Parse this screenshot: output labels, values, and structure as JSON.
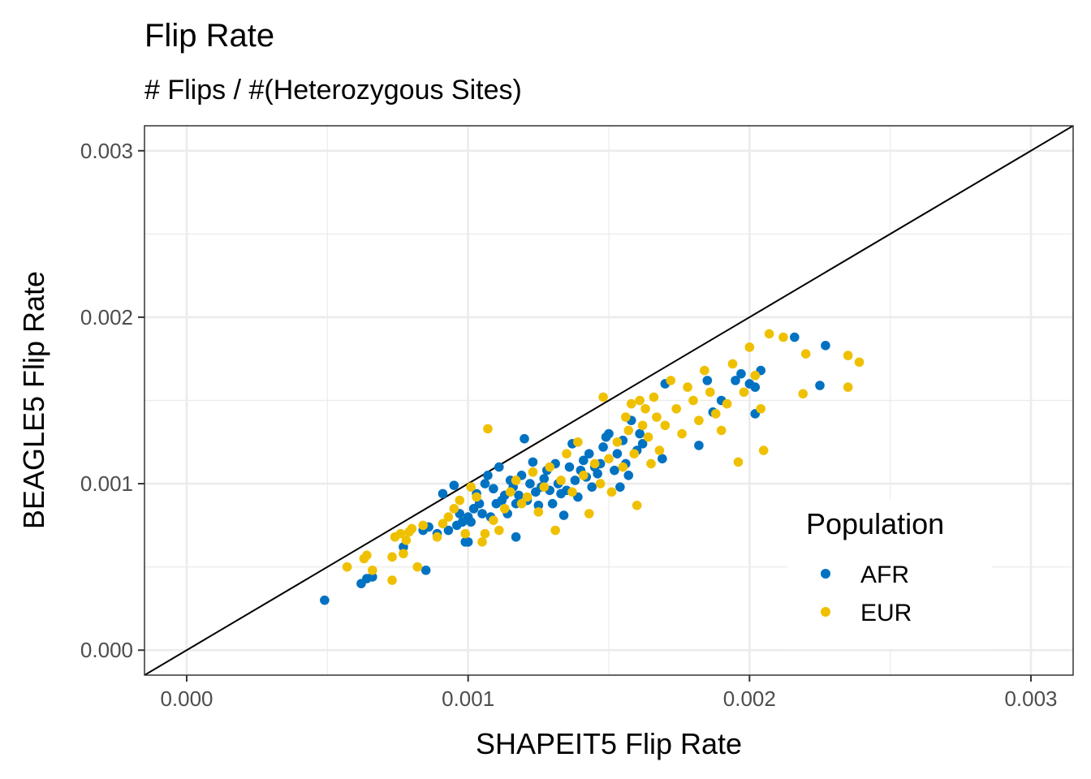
{
  "chart_data": {
    "type": "scatter",
    "title": "Flip Rate",
    "subtitle": "# Flips / #(Heterozygous Sites)",
    "xlabel": "SHAPEIT5 Flip Rate",
    "ylabel": "BEAGLE5 Flip Rate",
    "xlim": [
      -0.00015,
      0.00315
    ],
    "ylim": [
      -0.00015,
      0.00315
    ],
    "x_ticks": [
      "0.000",
      "0.001",
      "0.002",
      "0.003"
    ],
    "y_ticks": [
      "0.000",
      "0.001",
      "0.002",
      "0.003"
    ],
    "x_tick_values": [
      0,
      0.001,
      0.002,
      0.003
    ],
    "y_tick_values": [
      0,
      0.001,
      0.002,
      0.003
    ],
    "grid": true,
    "reference_line": "y = x",
    "legend_title": "Population",
    "legend_position": "bottom-right (inside plot)",
    "series": [
      {
        "name": "AFR",
        "color": "#0072C2",
        "points": [
          [
            0.00049,
            0.0003
          ],
          [
            0.00062,
            0.0004
          ],
          [
            0.00064,
            0.00043
          ],
          [
            0.00066,
            0.00044
          ],
          [
            0.00077,
            0.00062
          ],
          [
            0.00085,
            0.00048
          ],
          [
            0.00084,
            0.00072
          ],
          [
            0.00086,
            0.00074
          ],
          [
            0.00089,
            0.0007
          ],
          [
            0.00091,
            0.00094
          ],
          [
            0.00093,
            0.00072
          ],
          [
            0.00095,
            0.00099
          ],
          [
            0.00096,
            0.00075
          ],
          [
            0.00097,
            0.00082
          ],
          [
            0.00098,
            0.00077
          ],
          [
            0.00099,
            0.00065
          ],
          [
            0.001,
            0.00065
          ],
          [
            0.001,
            0.0008
          ],
          [
            0.00101,
            0.00077
          ],
          [
            0.00102,
            0.00085
          ],
          [
            0.00103,
            0.00094
          ],
          [
            0.00104,
            0.00088
          ],
          [
            0.00105,
            0.00082
          ],
          [
            0.00106,
            0.001
          ],
          [
            0.00107,
            0.00105
          ],
          [
            0.00108,
            0.0008
          ],
          [
            0.00109,
            0.00097
          ],
          [
            0.0011,
            0.00088
          ],
          [
            0.00111,
            0.0011
          ],
          [
            0.00112,
            0.0009
          ],
          [
            0.00113,
            0.00093
          ],
          [
            0.00114,
            0.00082
          ],
          [
            0.00115,
            0.00102
          ],
          [
            0.00116,
            0.00098
          ],
          [
            0.00117,
            0.00088
          ],
          [
            0.00117,
            0.00068
          ],
          [
            0.00118,
            0.00093
          ],
          [
            0.00119,
            0.00105
          ],
          [
            0.0012,
            0.00127
          ],
          [
            0.00121,
            0.0009
          ],
          [
            0.00122,
            0.001
          ],
          [
            0.00123,
            0.00113
          ],
          [
            0.00124,
            0.00095
          ],
          [
            0.00125,
            0.00087
          ],
          [
            0.00126,
            0.00098
          ],
          [
            0.00127,
            0.00103
          ],
          [
            0.00128,
            0.00108
          ],
          [
            0.00129,
            0.00096
          ],
          [
            0.0013,
            0.00088
          ],
          [
            0.00131,
            0.00112
          ],
          [
            0.00132,
            0.001
          ],
          [
            0.00133,
            0.00094
          ],
          [
            0.00134,
            0.00081
          ],
          [
            0.00135,
            0.00096
          ],
          [
            0.00136,
            0.0011
          ],
          [
            0.00137,
            0.00124
          ],
          [
            0.00138,
            0.00102
          ],
          [
            0.00139,
            0.00092
          ],
          [
            0.0014,
            0.00108
          ],
          [
            0.00141,
            0.00114
          ],
          [
            0.00142,
            0.00104
          ],
          [
            0.00143,
            0.00118
          ],
          [
            0.00144,
            0.00098
          ],
          [
            0.00145,
            0.0011
          ],
          [
            0.00146,
            0.00106
          ],
          [
            0.00147,
            0.00112
          ],
          [
            0.00148,
            0.00122
          ],
          [
            0.00149,
            0.00128
          ],
          [
            0.0015,
            0.0013
          ],
          [
            0.00152,
            0.00108
          ],
          [
            0.00153,
            0.00118
          ],
          [
            0.00154,
            0.00098
          ],
          [
            0.00155,
            0.00126
          ],
          [
            0.00156,
            0.00112
          ],
          [
            0.00157,
            0.00105
          ],
          [
            0.00158,
            0.00138
          ],
          [
            0.0016,
            0.0012
          ],
          [
            0.00161,
            0.0013
          ],
          [
            0.00162,
            0.00124
          ],
          [
            0.00169,
            0.00115
          ],
          [
            0.0017,
            0.0016
          ],
          [
            0.00182,
            0.00123
          ],
          [
            0.00185,
            0.00162
          ],
          [
            0.00187,
            0.00143
          ],
          [
            0.0019,
            0.0015
          ],
          [
            0.00195,
            0.00162
          ],
          [
            0.00197,
            0.00166
          ],
          [
            0.002,
            0.0016
          ],
          [
            0.00202,
            0.00158
          ],
          [
            0.00202,
            0.00142
          ],
          [
            0.00204,
            0.00168
          ],
          [
            0.00216,
            0.00188
          ],
          [
            0.00225,
            0.00159
          ],
          [
            0.00227,
            0.00183
          ]
        ]
      },
      {
        "name": "EUR",
        "color": "#EFC000",
        "points": [
          [
            0.00057,
            0.0005
          ],
          [
            0.00063,
            0.00055
          ],
          [
            0.00064,
            0.00057
          ],
          [
            0.00066,
            0.00048
          ],
          [
            0.00073,
            0.00042
          ],
          [
            0.00073,
            0.00056
          ],
          [
            0.00074,
            0.00068
          ],
          [
            0.00076,
            0.0007
          ],
          [
            0.00077,
            0.00058
          ],
          [
            0.00078,
            0.00066
          ],
          [
            0.00079,
            0.00071
          ],
          [
            0.0008,
            0.00073
          ],
          [
            0.00082,
            0.0005
          ],
          [
            0.00084,
            0.00075
          ],
          [
            0.00089,
            0.00068
          ],
          [
            0.00091,
            0.00076
          ],
          [
            0.00093,
            0.0008
          ],
          [
            0.00095,
            0.00085
          ],
          [
            0.00097,
            0.0009
          ],
          [
            0.00099,
            0.0007
          ],
          [
            0.00101,
            0.00098
          ],
          [
            0.00103,
            0.00092
          ],
          [
            0.00105,
            0.00065
          ],
          [
            0.00106,
            0.0007
          ],
          [
            0.00107,
            0.00133
          ],
          [
            0.00109,
            0.00078
          ],
          [
            0.00111,
            0.00072
          ],
          [
            0.00113,
            0.00085
          ],
          [
            0.00115,
            0.00095
          ],
          [
            0.00117,
            0.00102
          ],
          [
            0.00119,
            0.00088
          ],
          [
            0.00121,
            0.00092
          ],
          [
            0.00123,
            0.00107
          ],
          [
            0.00125,
            0.00083
          ],
          [
            0.00127,
            0.00098
          ],
          [
            0.00129,
            0.0011
          ],
          [
            0.00131,
            0.00072
          ],
          [
            0.00133,
            0.00102
          ],
          [
            0.00135,
            0.00118
          ],
          [
            0.00137,
            0.00095
          ],
          [
            0.00139,
            0.00125
          ],
          [
            0.00141,
            0.00105
          ],
          [
            0.00143,
            0.00082
          ],
          [
            0.00145,
            0.00112
          ],
          [
            0.00147,
            0.001
          ],
          [
            0.00148,
            0.00152
          ],
          [
            0.0015,
            0.00115
          ],
          [
            0.00151,
            0.00095
          ],
          [
            0.00153,
            0.00125
          ],
          [
            0.00155,
            0.0011
          ],
          [
            0.00156,
            0.0014
          ],
          [
            0.00157,
            0.00132
          ],
          [
            0.00158,
            0.00148
          ],
          [
            0.00159,
            0.00118
          ],
          [
            0.0016,
            0.00087
          ],
          [
            0.00161,
            0.0015
          ],
          [
            0.00162,
            0.00135
          ],
          [
            0.00163,
            0.00145
          ],
          [
            0.00164,
            0.00128
          ],
          [
            0.00165,
            0.00112
          ],
          [
            0.00166,
            0.00152
          ],
          [
            0.00167,
            0.0014
          ],
          [
            0.00168,
            0.0012
          ],
          [
            0.0017,
            0.00135
          ],
          [
            0.00172,
            0.00162
          ],
          [
            0.00174,
            0.00145
          ],
          [
            0.00176,
            0.0013
          ],
          [
            0.00178,
            0.00158
          ],
          [
            0.0018,
            0.0015
          ],
          [
            0.00182,
            0.00138
          ],
          [
            0.00184,
            0.00168
          ],
          [
            0.00186,
            0.00155
          ],
          [
            0.00188,
            0.00142
          ],
          [
            0.0019,
            0.00132
          ],
          [
            0.00192,
            0.00148
          ],
          [
            0.00194,
            0.00172
          ],
          [
            0.00196,
            0.00113
          ],
          [
            0.00198,
            0.00155
          ],
          [
            0.002,
            0.00182
          ],
          [
            0.00202,
            0.00165
          ],
          [
            0.00204,
            0.00145
          ],
          [
            0.00205,
            0.0012
          ],
          [
            0.00207,
            0.0019
          ],
          [
            0.00212,
            0.00188
          ],
          [
            0.00219,
            0.00154
          ],
          [
            0.0022,
            0.00178
          ],
          [
            0.00235,
            0.00177
          ],
          [
            0.00235,
            0.00158
          ],
          [
            0.00239,
            0.00173
          ]
        ]
      }
    ]
  }
}
